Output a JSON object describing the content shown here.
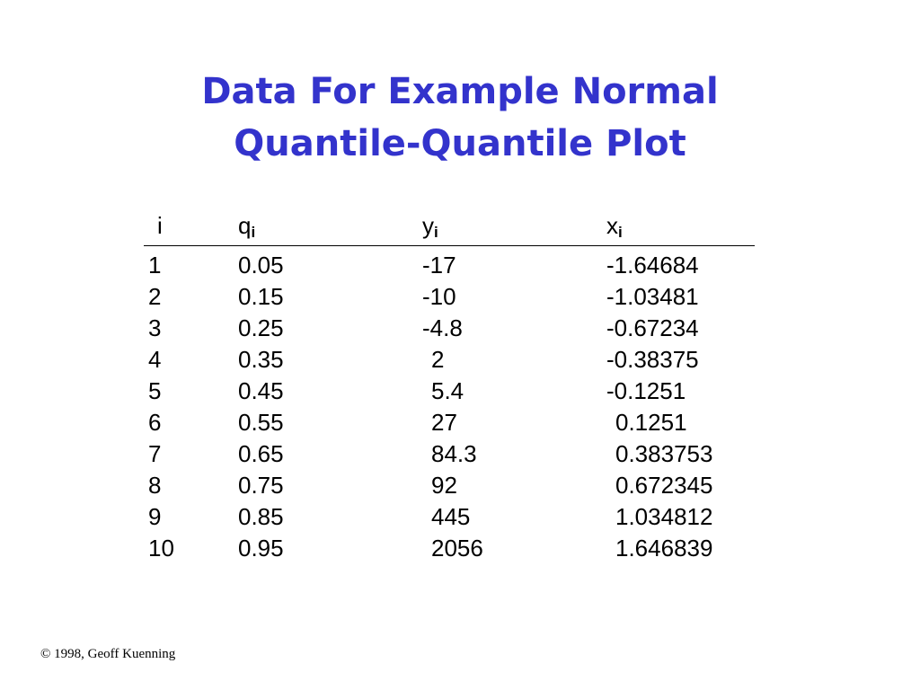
{
  "header": {
    "title_lines": [
      "Data For Example Normal",
      "Quantile-Quantile Plot"
    ]
  },
  "table": {
    "columns": [
      {
        "base": "i",
        "sub": null
      },
      {
        "base": "q",
        "sub": "i"
      },
      {
        "base": "y",
        "sub": "i"
      },
      {
        "base": "x",
        "sub": "i"
      }
    ],
    "rows": [
      [
        "1",
        "0.05",
        "-17",
        "-1.64684"
      ],
      [
        "2",
        "0.15",
        "-10",
        "-1.03481"
      ],
      [
        "3",
        "0.25",
        "-4.8",
        "-0.67234"
      ],
      [
        "4",
        "0.35",
        "2",
        "-0.38375"
      ],
      [
        "5",
        "0.45",
        "5.4",
        "-0.1251"
      ],
      [
        "6",
        "0.55",
        "27",
        "0.1251"
      ],
      [
        "7",
        "0.65",
        "84.3",
        "0.383753"
      ],
      [
        "8",
        "0.75",
        "92",
        "0.672345"
      ],
      [
        "9",
        "0.85",
        "445",
        "1.034812"
      ],
      [
        "10",
        "0.95",
        "2056",
        "1.646839"
      ]
    ]
  },
  "footer": {
    "text": "© 1998, Geoff Kuenning"
  }
}
